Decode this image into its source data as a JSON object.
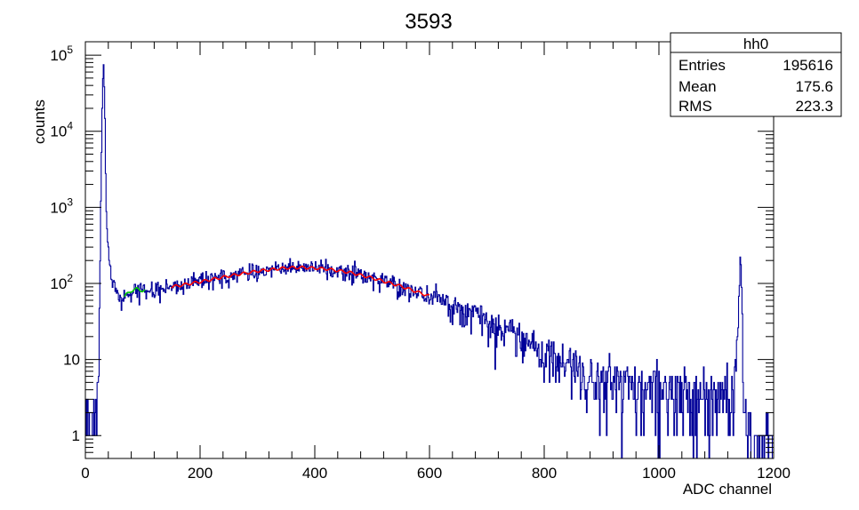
{
  "chart_data": {
    "type": "histogram",
    "title": "3593",
    "xlabel": "ADC channel",
    "ylabel": "counts",
    "xlim": [
      0,
      1200
    ],
    "ylim": [
      0.5,
      150000
    ],
    "yscale": "log",
    "x_ticks": [
      0,
      200,
      400,
      600,
      800,
      1000,
      1200
    ],
    "y_ticks": [
      {
        "value": 1,
        "label": "1"
      },
      {
        "value": 10,
        "label": "10"
      },
      {
        "value": 100,
        "base": "10",
        "exp": "2"
      },
      {
        "value": 1000,
        "base": "10",
        "exp": "3"
      },
      {
        "value": 10000,
        "base": "10",
        "exp": "4"
      },
      {
        "value": 100000,
        "base": "10",
        "exp": "5"
      }
    ],
    "colors": {
      "histogram": "#000099",
      "fit_main": "#ff0000",
      "fit_small": "#00cc00"
    },
    "stats_box": {
      "name": "hh0",
      "rows": [
        {
          "label": "Entries",
          "value": "195616"
        },
        {
          "label": "Mean",
          "value": "175.6"
        },
        {
          "label": "RMS",
          "value": "223.3"
        }
      ]
    },
    "histogram_envelope": [
      [
        0,
        1.5
      ],
      [
        10,
        1.5
      ],
      [
        18,
        1.2
      ],
      [
        20,
        2.5
      ],
      [
        22,
        4
      ],
      [
        24,
        20
      ],
      [
        26,
        300
      ],
      [
        28,
        5000
      ],
      [
        30,
        40000
      ],
      [
        32,
        90000
      ],
      [
        34,
        20000
      ],
      [
        36,
        1200
      ],
      [
        38,
        500
      ],
      [
        40,
        300
      ],
      [
        42,
        200
      ],
      [
        45,
        130
      ],
      [
        50,
        95
      ],
      [
        55,
        75
      ],
      [
        60,
        62
      ],
      [
        65,
        62
      ],
      [
        70,
        70
      ],
      [
        80,
        80
      ],
      [
        90,
        85
      ],
      [
        100,
        80
      ],
      [
        120,
        82
      ],
      [
        150,
        90
      ],
      [
        200,
        105
      ],
      [
        250,
        125
      ],
      [
        300,
        145
      ],
      [
        350,
        160
      ],
      [
        380,
        162
      ],
      [
        420,
        155
      ],
      [
        460,
        140
      ],
      [
        500,
        118
      ],
      [
        550,
        92
      ],
      [
        600,
        68
      ],
      [
        650,
        48
      ],
      [
        700,
        32
      ],
      [
        750,
        20
      ],
      [
        800,
        12
      ],
      [
        850,
        8
      ],
      [
        900,
        5
      ],
      [
        950,
        4
      ],
      [
        1000,
        3.5
      ],
      [
        1050,
        3
      ],
      [
        1100,
        3
      ],
      [
        1130,
        4
      ],
      [
        1138,
        20
      ],
      [
        1142,
        300
      ],
      [
        1145,
        60
      ],
      [
        1148,
        1.5
      ],
      [
        1155,
        0.5
      ]
    ],
    "fit_main_range": [
      150,
      600
    ],
    "fit_small_range": [
      68,
      105
    ]
  }
}
